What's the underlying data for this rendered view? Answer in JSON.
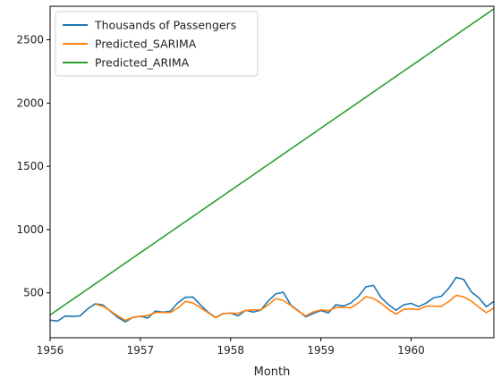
{
  "chart_data": {
    "type": "line",
    "xlabel": "Month",
    "ylabel": "",
    "title": "",
    "xlim": [
      1956.0,
      1960.917
    ],
    "ylim": [
      145,
      2765
    ],
    "x_ticks": [
      {
        "value": 1956,
        "label": "1956"
      },
      {
        "value": 1957,
        "label": "1957"
      },
      {
        "value": 1958,
        "label": "1958"
      },
      {
        "value": 1959,
        "label": "1959"
      },
      {
        "value": 1960,
        "label": "1960"
      }
    ],
    "y_ticks": [
      {
        "value": 500,
        "label": "500"
      },
      {
        "value": 1000,
        "label": "1000"
      },
      {
        "value": 1500,
        "label": "1500"
      },
      {
        "value": 2000,
        "label": "2000"
      },
      {
        "value": 2500,
        "label": "2500"
      }
    ],
    "legend_position": "top-left",
    "grid": false,
    "x": [
      "1956-01",
      "1956-02",
      "1956-03",
      "1956-04",
      "1956-05",
      "1956-06",
      "1956-07",
      "1956-08",
      "1956-09",
      "1956-10",
      "1956-11",
      "1956-12",
      "1957-01",
      "1957-02",
      "1957-03",
      "1957-04",
      "1957-05",
      "1957-06",
      "1957-07",
      "1957-08",
      "1957-09",
      "1957-10",
      "1957-11",
      "1957-12",
      "1958-01",
      "1958-02",
      "1958-03",
      "1958-04",
      "1958-05",
      "1958-06",
      "1958-07",
      "1958-08",
      "1958-09",
      "1958-10",
      "1958-11",
      "1958-12",
      "1959-01",
      "1959-02",
      "1959-03",
      "1959-04",
      "1959-05",
      "1959-06",
      "1959-07",
      "1959-08",
      "1959-09",
      "1959-10",
      "1959-11",
      "1959-12",
      "1960-01",
      "1960-02",
      "1960-03",
      "1960-04",
      "1960-05",
      "1960-06",
      "1960-07",
      "1960-08",
      "1960-09",
      "1960-10",
      "1960-11",
      "1960-12"
    ],
    "series": [
      {
        "name": "Thousands of Passengers",
        "color": "#1f77b4",
        "values": [
          284,
          277,
          317,
          313,
          318,
          374,
          413,
          405,
          355,
          306,
          271,
          306,
          315,
          301,
          356,
          348,
          355,
          422,
          465,
          467,
          404,
          347,
          305,
          336,
          340,
          318,
          362,
          348,
          363,
          435,
          491,
          505,
          404,
          359,
          310,
          337,
          360,
          342,
          406,
          396,
          420,
          472,
          548,
          559,
          463,
          407,
          362,
          405,
          417,
          391,
          419,
          461,
          472,
          535,
          622,
          606,
          508,
          461,
          390,
          432
        ]
      },
      {
        "name": "Predicted_SARIMA",
        "color": "#ff7f0e",
        "values": [
          null,
          null,
          null,
          null,
          null,
          null,
          410,
          395,
          358,
          318,
          283,
          305,
          315,
          320,
          345,
          345,
          345,
          380,
          432,
          420,
          382,
          343,
          303,
          335,
          340,
          338,
          360,
          365,
          365,
          405,
          455,
          440,
          400,
          355,
          318,
          350,
          365,
          358,
          385,
          385,
          382,
          420,
          470,
          455,
          418,
          370,
          332,
          370,
          373,
          368,
          395,
          395,
          392,
          432,
          480,
          468,
          435,
          388,
          343,
          380
        ]
      },
      {
        "name": "Predicted_ARIMA",
        "color": "#2ca02c",
        "values": [
          325,
          366,
          407,
          448,
          489,
          530,
          571,
          612,
          653,
          694,
          735,
          776,
          817,
          858,
          899,
          940,
          981,
          1022,
          1063,
          1104,
          1145,
          1186,
          1227,
          1268,
          1309,
          1350,
          1391,
          1432,
          1473,
          1514,
          1555,
          1596,
          1637,
          1678,
          1719,
          1760,
          1801,
          1842,
          1883,
          1924,
          1965,
          2006,
          2047,
          2088,
          2129,
          2170,
          2211,
          2252,
          2293,
          2334,
          2375,
          2416,
          2457,
          2498,
          2539,
          2580,
          2621,
          2662,
          2703,
          2744
        ]
      }
    ]
  }
}
